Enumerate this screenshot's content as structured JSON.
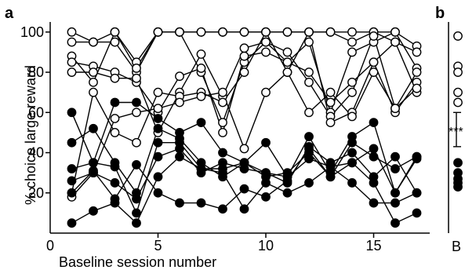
{
  "chart_data": [
    {
      "panel": "a",
      "type": "line",
      "xlabel": "Baseline session number",
      "ylabel": "% choice large reward",
      "xlim": [
        0,
        17.6
      ],
      "ylim": [
        0,
        105
      ],
      "xticks": [
        0,
        5,
        10,
        15
      ],
      "yticks": [
        20,
        40,
        60,
        80,
        100
      ],
      "grid": false,
      "legend": "none",
      "x": [
        1,
        2,
        3,
        4,
        5,
        6,
        7,
        8,
        9,
        10,
        11,
        12,
        13,
        14,
        15,
        16,
        17
      ],
      "series": [
        {
          "marker": "open",
          "values": [
            100,
            95,
            100,
            85,
            100,
            100,
            100,
            100,
            100,
            100,
            100,
            100,
            100,
            100,
            100,
            100,
            93
          ]
        },
        {
          "marker": "open",
          "values": [
            95,
            95,
            95,
            80,
            100,
            100,
            100,
            100,
            100,
            100,
            100,
            100,
            100,
            95,
            100,
            95,
            90
          ]
        },
        {
          "marker": "open",
          "values": [
            88,
            75,
            100,
            82,
            100,
            100,
            80,
            55,
            85,
            95,
            85,
            95,
            60,
            90,
            95,
            100,
            82
          ]
        },
        {
          "marker": "open",
          "values": [
            85,
            83,
            80,
            75,
            60,
            78,
            82,
            50,
            88,
            90,
            85,
            80,
            65,
            75,
            85,
            95,
            70
          ]
        },
        {
          "marker": "open",
          "values": [
            80,
            80,
            77,
            77,
            50,
            70,
            89,
            68,
            92,
            95,
            90,
            75,
            58,
            70,
            98,
            62,
            80
          ]
        },
        {
          "marker": "open",
          "values": [
            20,
            70,
            50,
            45,
            70,
            68,
            70,
            65,
            80,
            100,
            80,
            100,
            55,
            60,
            85,
            60,
            75
          ]
        },
        {
          "marker": "open",
          "values": [
            18,
            30,
            57,
            60,
            62,
            65,
            68,
            70,
            42,
            70,
            80,
            60,
            70,
            58,
            80,
            62,
            72
          ]
        },
        {
          "marker": "filled",
          "values": [
            60,
            35,
            65,
            65,
            57,
            50,
            55,
            40,
            35,
            45,
            28,
            48,
            30,
            48,
            55,
            20,
            37
          ]
        },
        {
          "marker": "filled",
          "values": [
            45,
            52,
            35,
            20,
            52,
            47,
            35,
            28,
            35,
            30,
            28,
            37,
            33,
            35,
            42,
            20,
            38
          ]
        },
        {
          "marker": "filled",
          "values": [
            32,
            35,
            33,
            10,
            45,
            45,
            32,
            32,
            35,
            28,
            30,
            40,
            28,
            45,
            38,
            32,
            38
          ]
        },
        {
          "marker": "filled",
          "values": [
            26,
            30,
            25,
            17,
            38,
            42,
            30,
            35,
            32,
            30,
            25,
            43,
            35,
            40,
            28,
            38,
            20
          ]
        },
        {
          "marker": "filled",
          "values": [
            5,
            11,
            15,
            5,
            28,
            38,
            32,
            30,
            12,
            25,
            20,
            25,
            33,
            25,
            15,
            15,
            20
          ]
        },
        {
          "marker": "filled",
          "values": [
            20,
            31,
            17,
            34,
            20,
            15,
            15,
            12,
            22,
            18,
            26,
            42,
            28,
            35,
            25,
            5,
            10
          ]
        }
      ]
    },
    {
      "panel": "b",
      "type": "scatter",
      "xlabel": "B",
      "ylim": [
        0,
        105
      ],
      "annotation": "***",
      "groups": [
        {
          "marker": "open",
          "values": [
            98,
            83,
            80,
            70,
            65
          ]
        },
        {
          "marker": "filled",
          "values": [
            35,
            30,
            27,
            25,
            23
          ]
        }
      ]
    }
  ]
}
